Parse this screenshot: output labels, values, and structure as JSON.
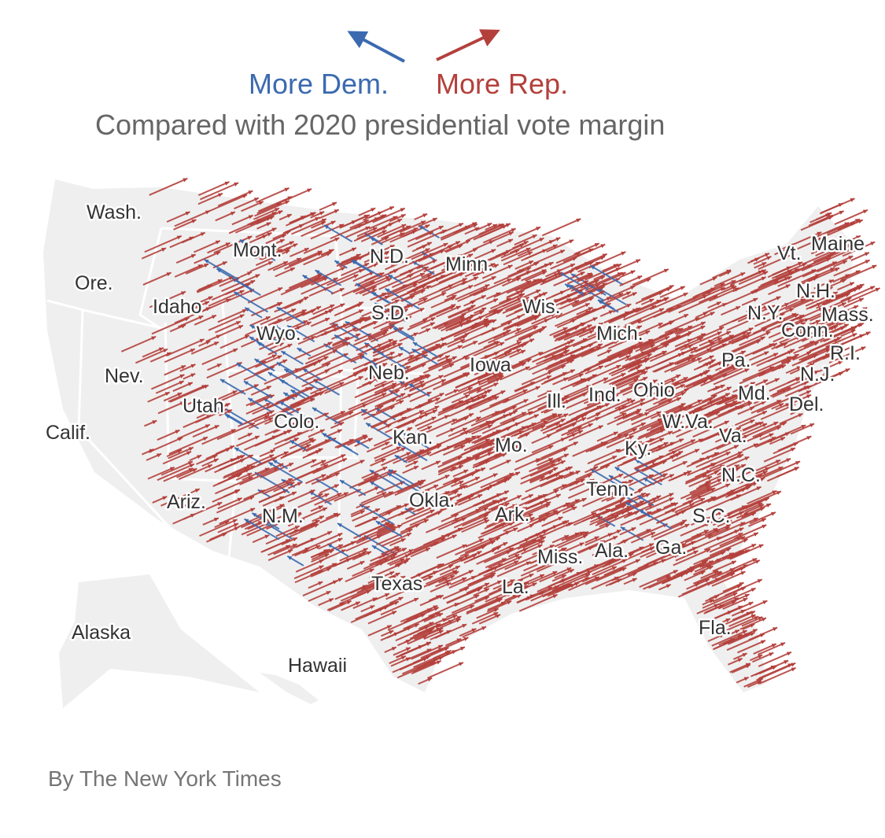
{
  "legend": {
    "dem_label": "More Dem.",
    "rep_label": "More Rep.",
    "subtitle": "Compared with 2020 presidential vote margin"
  },
  "map": {
    "state_labels": [
      "Wash.",
      "Mont.",
      "N.D.",
      "Minn.",
      "Vt.",
      "Maine",
      "Ore.",
      "Idaho",
      "Wyo.",
      "S.D.",
      "Wis.",
      "Mich.",
      "N.H.",
      "N.Y.",
      "Mass.",
      "Conn.",
      "R.I.",
      "Nev.",
      "Neb.",
      "Iowa",
      "Pa.",
      "N.J.",
      "Ill.",
      "Ind.",
      "Ohio",
      "Md.",
      "Del.",
      "Utah",
      "Colo.",
      "Calif.",
      "Kan.",
      "W.Va.",
      "Va.",
      "Mo.",
      "Ky.",
      "N.C.",
      "Tenn.",
      "Ariz.",
      "N.M.",
      "Okla.",
      "Ark.",
      "S.C.",
      "Ala.",
      "Ga.",
      "Miss.",
      "Texas",
      "La.",
      "Fla.",
      "Alaska",
      "Hawaii"
    ]
  },
  "colors": {
    "dem": "#3b6ab0",
    "rep": "#b4403c",
    "land": "#efefef",
    "border": "#ffffff"
  },
  "credit": "By The New York Times"
}
